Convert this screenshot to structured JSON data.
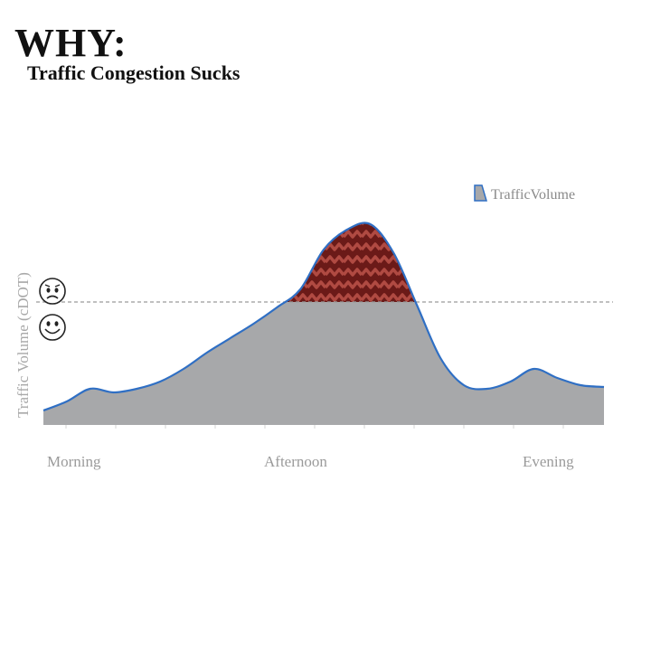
{
  "header": {
    "title": "WHY:",
    "subtitle": "Traffic Congestion Sucks"
  },
  "chart_data": {
    "type": "area",
    "xlabel": "",
    "ylabel": "Traffic Volume (cDOT)",
    "categories": [
      "Morning",
      "Afternoon",
      "Evening"
    ],
    "x": [
      0,
      0.5,
      1,
      1.5,
      2,
      2.5,
      3,
      3.5,
      4,
      4.5,
      5,
      5.5,
      6,
      6.5,
      7,
      7.5,
      8,
      8.5,
      9,
      9.5,
      10,
      10.5,
      11,
      11.5,
      12
    ],
    "series": [
      {
        "name": "TrafficVolume",
        "values": [
          8,
          13,
          20,
          18,
          20,
          24,
          31,
          40,
          48,
          56,
          65,
          75,
          97,
          108,
          111,
          95,
          66,
          37,
          22,
          20,
          24,
          31,
          26,
          22,
          21
        ]
      }
    ],
    "xlim": [
      0,
      12
    ],
    "ylim": [
      0,
      120
    ],
    "threshold": 68,
    "threshold_style": "dashed",
    "legend": {
      "label": "TrafficVolume",
      "placement": "top-right"
    },
    "grid": false,
    "colors": {
      "area_fill": "#a7a8aa",
      "line": "#2f6fc4",
      "congestion_fill": "#6b1a18",
      "congestion_pattern": "#b04a42",
      "threshold_line": "#9a9a9a"
    },
    "annotations": {
      "above_threshold_icon": "frowning-face-icon",
      "below_threshold_icon": "smiling-face-icon"
    }
  }
}
